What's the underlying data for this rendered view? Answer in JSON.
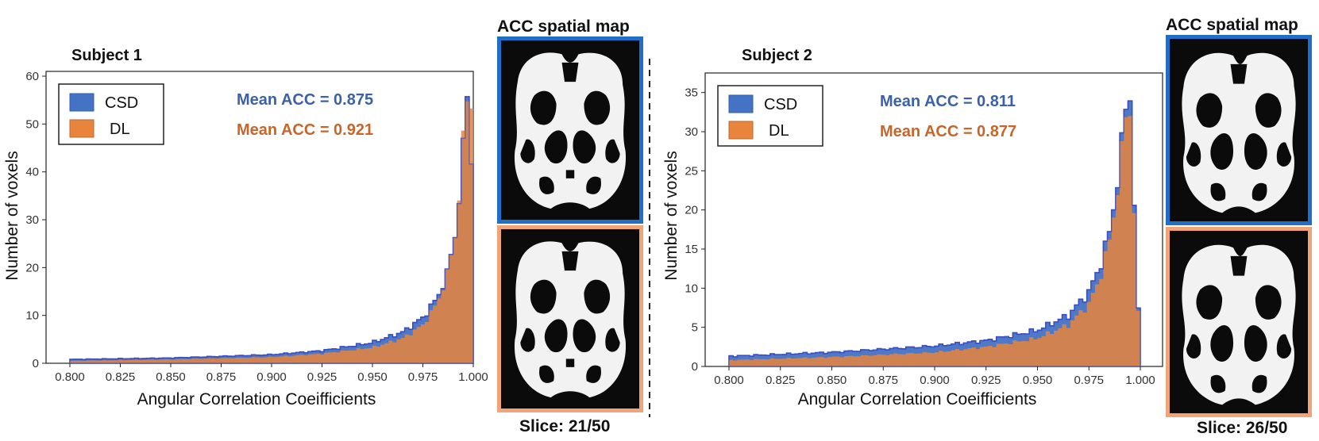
{
  "chart_data": [
    {
      "type": "histogram",
      "panel_title": "Subject 1",
      "xlabel": "Angular Correlation Coeifficients",
      "ylabel": "Number of voxels",
      "xlim": [
        0.8,
        1.0
      ],
      "ylim": [
        0,
        61
      ],
      "xticks": [
        "0.800",
        "0.825",
        "0.850",
        "0.875",
        "0.900",
        "0.925",
        "0.950",
        "0.975",
        "1.000"
      ],
      "yticks": [
        "0",
        "10",
        "20",
        "30",
        "40",
        "50",
        "60"
      ],
      "legend": [
        "CSD",
        "DL"
      ],
      "legend_placement": "top-left",
      "colors": {
        "CSD": "#4472c4",
        "CSD_edge": "#3a4fc4",
        "DL": "#e8843c"
      },
      "annotations": [
        {
          "text": "Mean ACC = 0.875",
          "color": "#3b62a8"
        },
        {
          "text": "Mean ACC = 0.921",
          "color": "#c8652a"
        }
      ],
      "series": [
        {
          "name": "CSD",
          "anchors": [
            [
              0.8,
              0.8
            ],
            [
              0.85,
              1.1
            ],
            [
              0.9,
              1.8
            ],
            [
              0.925,
              2.6
            ],
            [
              0.95,
              4.3
            ],
            [
              0.965,
              6.5
            ],
            [
              0.975,
              9.5
            ],
            [
              0.982,
              13.5
            ],
            [
              0.987,
              18.5
            ],
            [
              0.991,
              27
            ],
            [
              0.994,
              38
            ],
            [
              0.996,
              50
            ],
            [
              0.997,
              57
            ],
            [
              0.998,
              56
            ],
            [
              0.999,
              43
            ],
            [
              1.0,
              0
            ]
          ]
        },
        {
          "name": "DL",
          "anchors": [
            [
              0.8,
              0.5
            ],
            [
              0.85,
              0.8
            ],
            [
              0.9,
              1.3
            ],
            [
              0.925,
              2.0
            ],
            [
              0.95,
              3.3
            ],
            [
              0.965,
              5.2
            ],
            [
              0.975,
              8.0
            ],
            [
              0.982,
              12.5
            ],
            [
              0.987,
              18.5
            ],
            [
              0.991,
              27
            ],
            [
              0.994,
              39
            ],
            [
              0.996,
              52
            ],
            [
              0.997,
              56
            ],
            [
              0.998,
              57
            ],
            [
              0.999,
              55
            ],
            [
              1.0,
              0
            ]
          ]
        }
      ],
      "map_title": "ACC spatial map",
      "slice_label": "Slice: 21/50"
    },
    {
      "type": "histogram",
      "panel_title": "Subject 2",
      "xlabel": "Angular Correlation Coeifficients",
      "ylabel": "Number of voxels",
      "xlim": [
        0.8,
        1.0
      ],
      "ylim": [
        0,
        37.5
      ],
      "xticks": [
        "0.800",
        "0.825",
        "0.850",
        "0.875",
        "0.900",
        "0.925",
        "0.950",
        "0.975",
        "1.000"
      ],
      "yticks": [
        "0",
        "5",
        "10",
        "15",
        "20",
        "25",
        "30",
        "35"
      ],
      "legend": [
        "CSD",
        "DL"
      ],
      "legend_placement": "top-left",
      "colors": {
        "CSD": "#4472c4",
        "CSD_edge": "#3a4fc4",
        "DL": "#e8843c"
      },
      "annotations": [
        {
          "text": "Mean ACC = 0.811",
          "color": "#3b62a8"
        },
        {
          "text": "Mean ACC = 0.877",
          "color": "#c8652a"
        }
      ],
      "series": [
        {
          "name": "CSD",
          "anchors": [
            [
              0.8,
              1.3
            ],
            [
              0.85,
              1.8
            ],
            [
              0.9,
              2.6
            ],
            [
              0.925,
              3.3
            ],
            [
              0.95,
              4.6
            ],
            [
              0.965,
              6.5
            ],
            [
              0.975,
              9.5
            ],
            [
              0.98,
              12.5
            ],
            [
              0.985,
              17
            ],
            [
              0.988,
              22
            ],
            [
              0.991,
              28
            ],
            [
              0.993,
              33
            ],
            [
              0.994,
              36
            ],
            [
              0.995,
              35
            ],
            [
              0.996,
              26
            ],
            [
              0.997,
              21
            ],
            [
              1.0,
              0
            ]
          ]
        },
        {
          "name": "DL",
          "anchors": [
            [
              0.8,
              0.8
            ],
            [
              0.85,
              1.2
            ],
            [
              0.9,
              1.8
            ],
            [
              0.925,
              2.5
            ],
            [
              0.95,
              3.6
            ],
            [
              0.965,
              5.3
            ],
            [
              0.975,
              8.0
            ],
            [
              0.98,
              11
            ],
            [
              0.985,
              16
            ],
            [
              0.988,
              21
            ],
            [
              0.991,
              27
            ],
            [
              0.993,
              32
            ],
            [
              0.994,
              35
            ],
            [
              0.995,
              33
            ],
            [
              0.996,
              32
            ],
            [
              0.997,
              20
            ],
            [
              1.0,
              0
            ]
          ]
        }
      ],
      "map_title": "ACC spatial map",
      "slice_label": "Slice: 26/50"
    }
  ]
}
